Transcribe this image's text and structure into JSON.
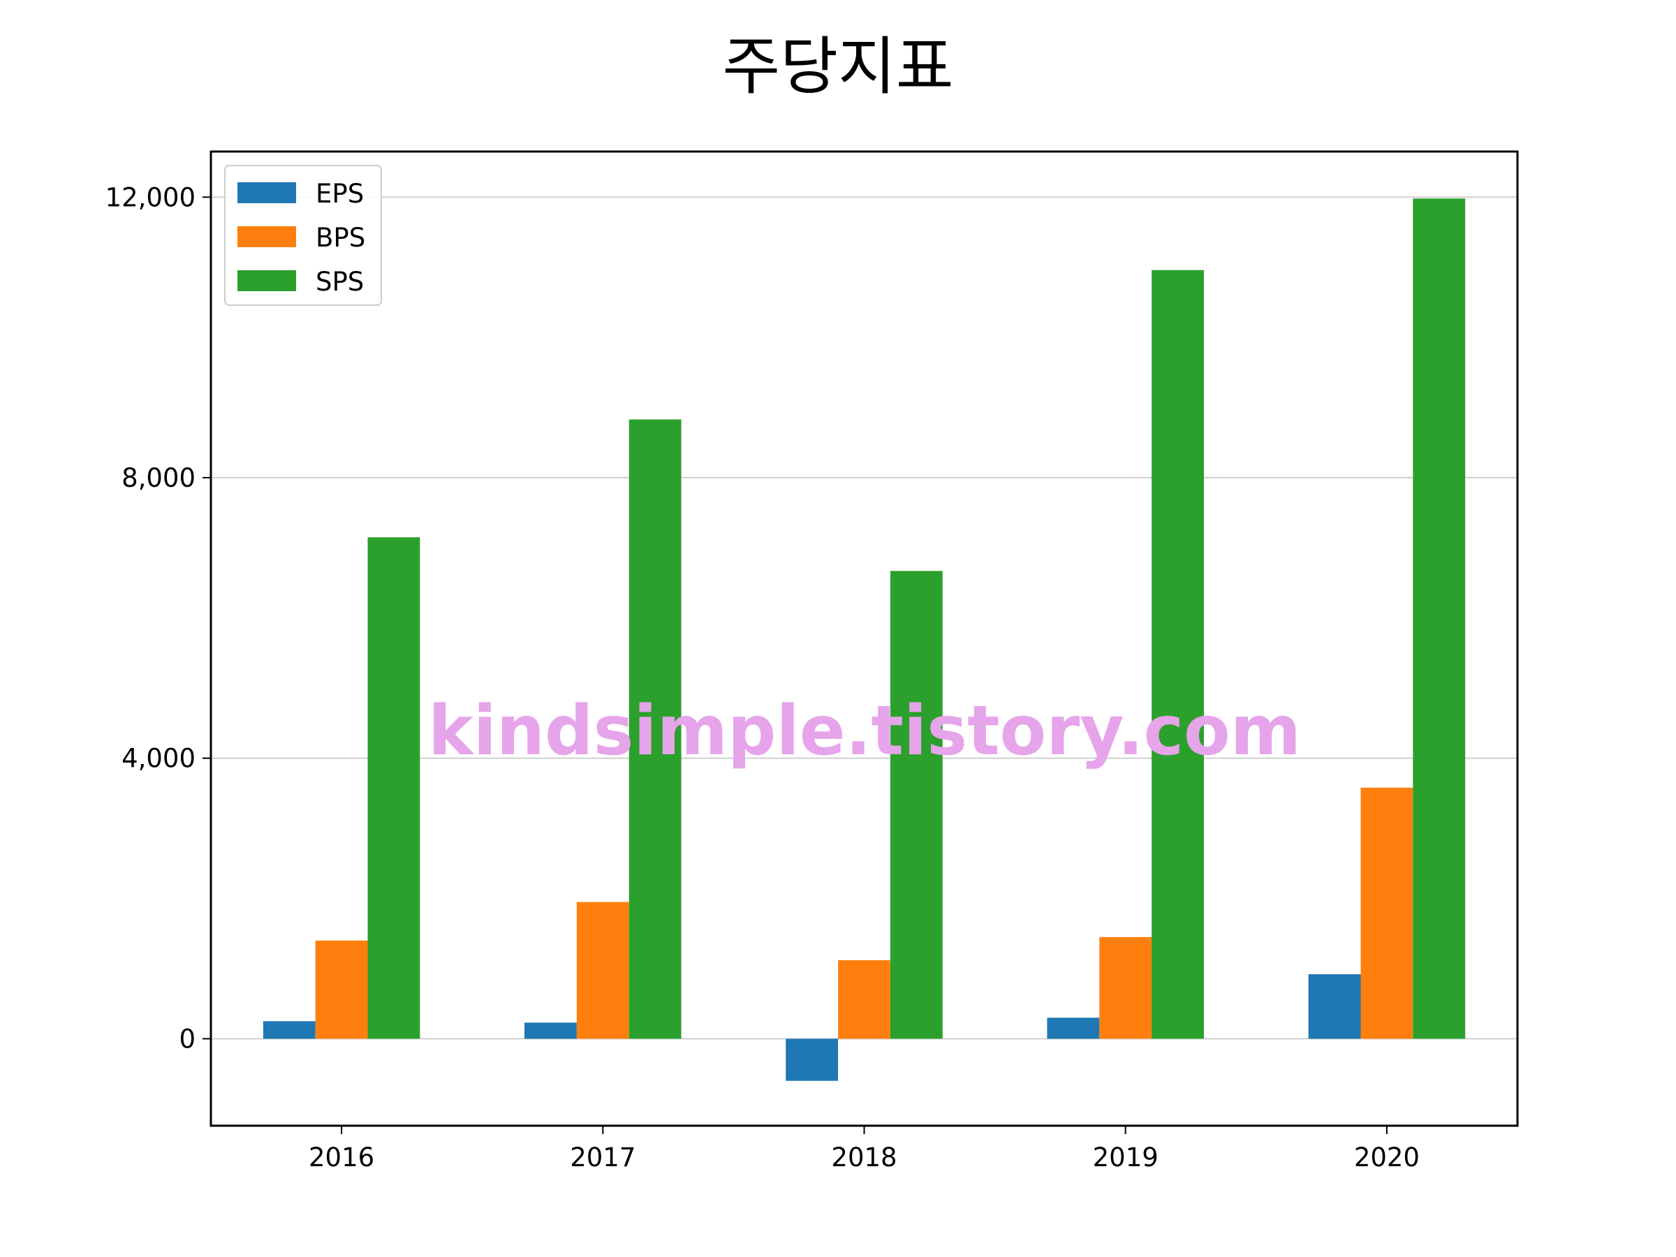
{
  "chart_data": {
    "type": "bar",
    "title": "주당지표",
    "xlabel": "",
    "ylabel": "",
    "categories": [
      "2016",
      "2017",
      "2018",
      "2019",
      "2020"
    ],
    "series": [
      {
        "name": "EPS",
        "color": "#1f77b4",
        "values": [
          250,
          230,
          -600,
          300,
          920
        ]
      },
      {
        "name": "BPS",
        "color": "#ff7f0e",
        "values": [
          1400,
          1950,
          1120,
          1450,
          3580
        ]
      },
      {
        "name": "SPS",
        "color": "#2ca02c",
        "values": [
          7150,
          8830,
          6670,
          10960,
          11980
        ]
      }
    ],
    "ylim": [
      -1240,
      12650
    ],
    "yticks": [
      0,
      4000,
      8000,
      12000
    ],
    "ytick_labels": [
      "0",
      "4,000",
      "8,000",
      "12,000"
    ],
    "grid": "y",
    "legend_position": "top-left",
    "watermark": "kindsimple.tistory.com",
    "watermark_color": "#e6a4ea"
  }
}
